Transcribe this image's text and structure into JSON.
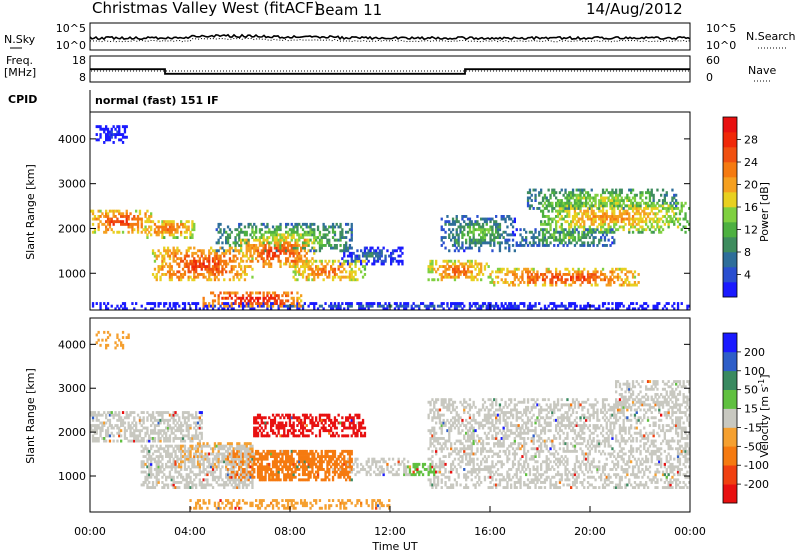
{
  "header": {
    "title": "Christmas Valley West (fitACF)",
    "beam": "Beam 11",
    "date": "14/Aug/2012"
  },
  "noise_panel": {
    "left_label": "N.Sky",
    "right_label": "N.Search",
    "left_ticks": [
      "10^5",
      "10^0"
    ],
    "right_ticks": [
      "10^5",
      "10^0"
    ]
  },
  "freq_panel": {
    "left_label_1": "Freq.",
    "left_label_2": "[MHz]",
    "right_label": "Nave",
    "left_ticks": [
      "18",
      "8"
    ],
    "right_ticks": [
      "60",
      "0"
    ],
    "freq_steps": [
      {
        "start": 0,
        "end": 3,
        "value": 12.9
      },
      {
        "start": 3,
        "end": 15,
        "value": 10.4
      },
      {
        "start": 15,
        "end": 24,
        "value": 12.9
      }
    ]
  },
  "cpid": {
    "label": "CPID",
    "text": "normal (fast) 151 IF"
  },
  "chart_data": [
    {
      "type": "heatmap",
      "name": "power",
      "ylabel": "Slant Range [km]",
      "xlabel": "",
      "xlim": [
        0,
        24
      ],
      "ylim": [
        180,
        4600
      ],
      "y_ticks": [
        "1000",
        "2000",
        "3000",
        "4000"
      ],
      "colorbar": {
        "label": "Power [dB]",
        "range": [
          0,
          32
        ],
        "tick_labels": [
          "4",
          "8",
          "12",
          "16",
          "20",
          "24",
          "28"
        ],
        "colors": [
          "#1a1aff",
          "#2a4fd0",
          "#2e6e9a",
          "#3e8c5e",
          "#4db040",
          "#7fd040",
          "#e8d020",
          "#f5a020",
          "#f57a10",
          "#f05010",
          "#f02808",
          "#e81010"
        ]
      }
    },
    {
      "type": "heatmap",
      "name": "velocity",
      "ylabel": "Slant Range [km]",
      "xlabel": "Time UT",
      "xlim": [
        0,
        24
      ],
      "ylim": [
        180,
        4600
      ],
      "y_ticks": [
        "1000",
        "2000",
        "3000",
        "4000"
      ],
      "x_ticks": [
        "00:00",
        "04:00",
        "08:00",
        "12:00",
        "16:00",
        "20:00",
        "00:00"
      ],
      "colorbar": {
        "label": "Velocity [m s^-1]",
        "tick_labels": [
          "200",
          "100",
          "50",
          "15",
          "-15",
          "-50",
          "-100",
          "-200"
        ],
        "colors": [
          "#1a1aff",
          "#2e5ec8",
          "#3a8a60",
          "#60c040",
          "#c8c8c0",
          "#f5a030",
          "#f57a10",
          "#f04010",
          "#e81010"
        ]
      }
    }
  ]
}
